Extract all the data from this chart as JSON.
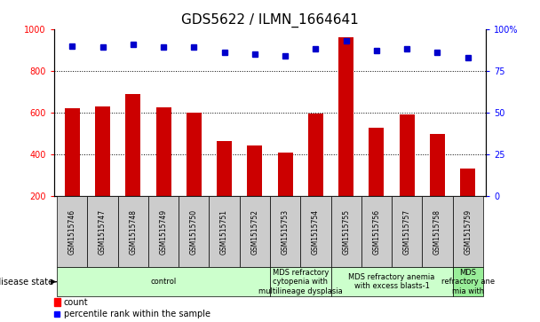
{
  "title": "GDS5622 / ILMN_1664641",
  "samples": [
    "GSM1515746",
    "GSM1515747",
    "GSM1515748",
    "GSM1515749",
    "GSM1515750",
    "GSM1515751",
    "GSM1515752",
    "GSM1515753",
    "GSM1515754",
    "GSM1515755",
    "GSM1515756",
    "GSM1515757",
    "GSM1515758",
    "GSM1515759"
  ],
  "counts": [
    620,
    630,
    690,
    625,
    600,
    465,
    445,
    408,
    598,
    960,
    530,
    590,
    498,
    335
  ],
  "percentiles": [
    90,
    89,
    91,
    89,
    89,
    86,
    85,
    84,
    88,
    93,
    87,
    88,
    86,
    83
  ],
  "group_boundaries": [
    0,
    7,
    9,
    13,
    14
  ],
  "group_labels": [
    "control",
    "MDS refractory\ncytopenia with\nmultilineage dysplasia",
    "MDS refractory anemia\nwith excess blasts-1",
    "MDS\nrefractory ane\nmia with"
  ],
  "group_colors": [
    "#ccffcc",
    "#ccffcc",
    "#ccffcc",
    "#99ee99"
  ],
  "ylim_left": [
    200,
    1000
  ],
  "ylim_right": [
    0,
    100
  ],
  "yticks_left": [
    200,
    400,
    600,
    800,
    1000
  ],
  "yticks_right": [
    0,
    25,
    50,
    75,
    100
  ],
  "bar_color": "#cc0000",
  "dot_color": "#0000cc",
  "title_fontsize": 11,
  "tick_fontsize": 7,
  "label_fontsize": 6,
  "legend_label_count": "count",
  "legend_label_pct": "percentile rank within the sample",
  "disease_state_label": "disease state",
  "sample_box_color": "#cccccc",
  "bar_width": 0.5
}
